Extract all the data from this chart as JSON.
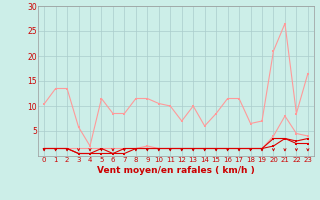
{
  "background_color": "#cceee8",
  "grid_color": "#aacccc",
  "xlabel": "Vent moyen/en rafales ( km/h )",
  "xlabel_color": "#cc0000",
  "x_ticks": [
    0,
    1,
    2,
    3,
    4,
    5,
    6,
    7,
    8,
    9,
    10,
    11,
    12,
    13,
    14,
    15,
    16,
    17,
    18,
    19,
    20,
    21,
    22,
    23
  ],
  "ylim": [
    0,
    30
  ],
  "yticks": [
    5,
    10,
    15,
    20,
    25,
    30
  ],
  "line_color_dark": "#dd0000",
  "line_color_light": "#ff9999",
  "series": {
    "max_gust": [
      10.4,
      13.5,
      13.5,
      5.8,
      2.0,
      11.5,
      8.5,
      8.5,
      11.5,
      11.5,
      10.5,
      10.0,
      7.0,
      10.0,
      6.0,
      8.5,
      11.5,
      11.5,
      6.5,
      7.0,
      21.0,
      26.5,
      8.5,
      16.5
    ],
    "mean_gust": [
      1.5,
      1.5,
      1.5,
      1.5,
      1.5,
      1.5,
      1.5,
      1.5,
      1.5,
      2.0,
      1.5,
      1.5,
      1.5,
      1.5,
      1.5,
      1.5,
      1.5,
      1.5,
      1.5,
      1.5,
      4.0,
      8.0,
      4.5,
      4.0
    ],
    "max_wind": [
      1.5,
      1.5,
      1.5,
      0.5,
      0.5,
      1.5,
      0.5,
      1.5,
      1.5,
      1.5,
      1.5,
      1.5,
      1.5,
      1.5,
      1.5,
      1.5,
      1.5,
      1.5,
      1.5,
      1.5,
      3.5,
      3.5,
      3.0,
      3.5
    ],
    "mean_wind": [
      1.5,
      1.5,
      1.5,
      0.5,
      0.5,
      0.5,
      0.5,
      0.5,
      1.5,
      1.5,
      1.5,
      1.5,
      1.5,
      1.5,
      1.5,
      1.5,
      1.5,
      1.5,
      1.5,
      1.5,
      2.0,
      3.5,
      2.5,
      2.5
    ]
  },
  "arrow_color": "#cc0000",
  "tick_color": "#cc0000",
  "tick_fontsize": 5,
  "xlabel_fontsize": 6.5
}
